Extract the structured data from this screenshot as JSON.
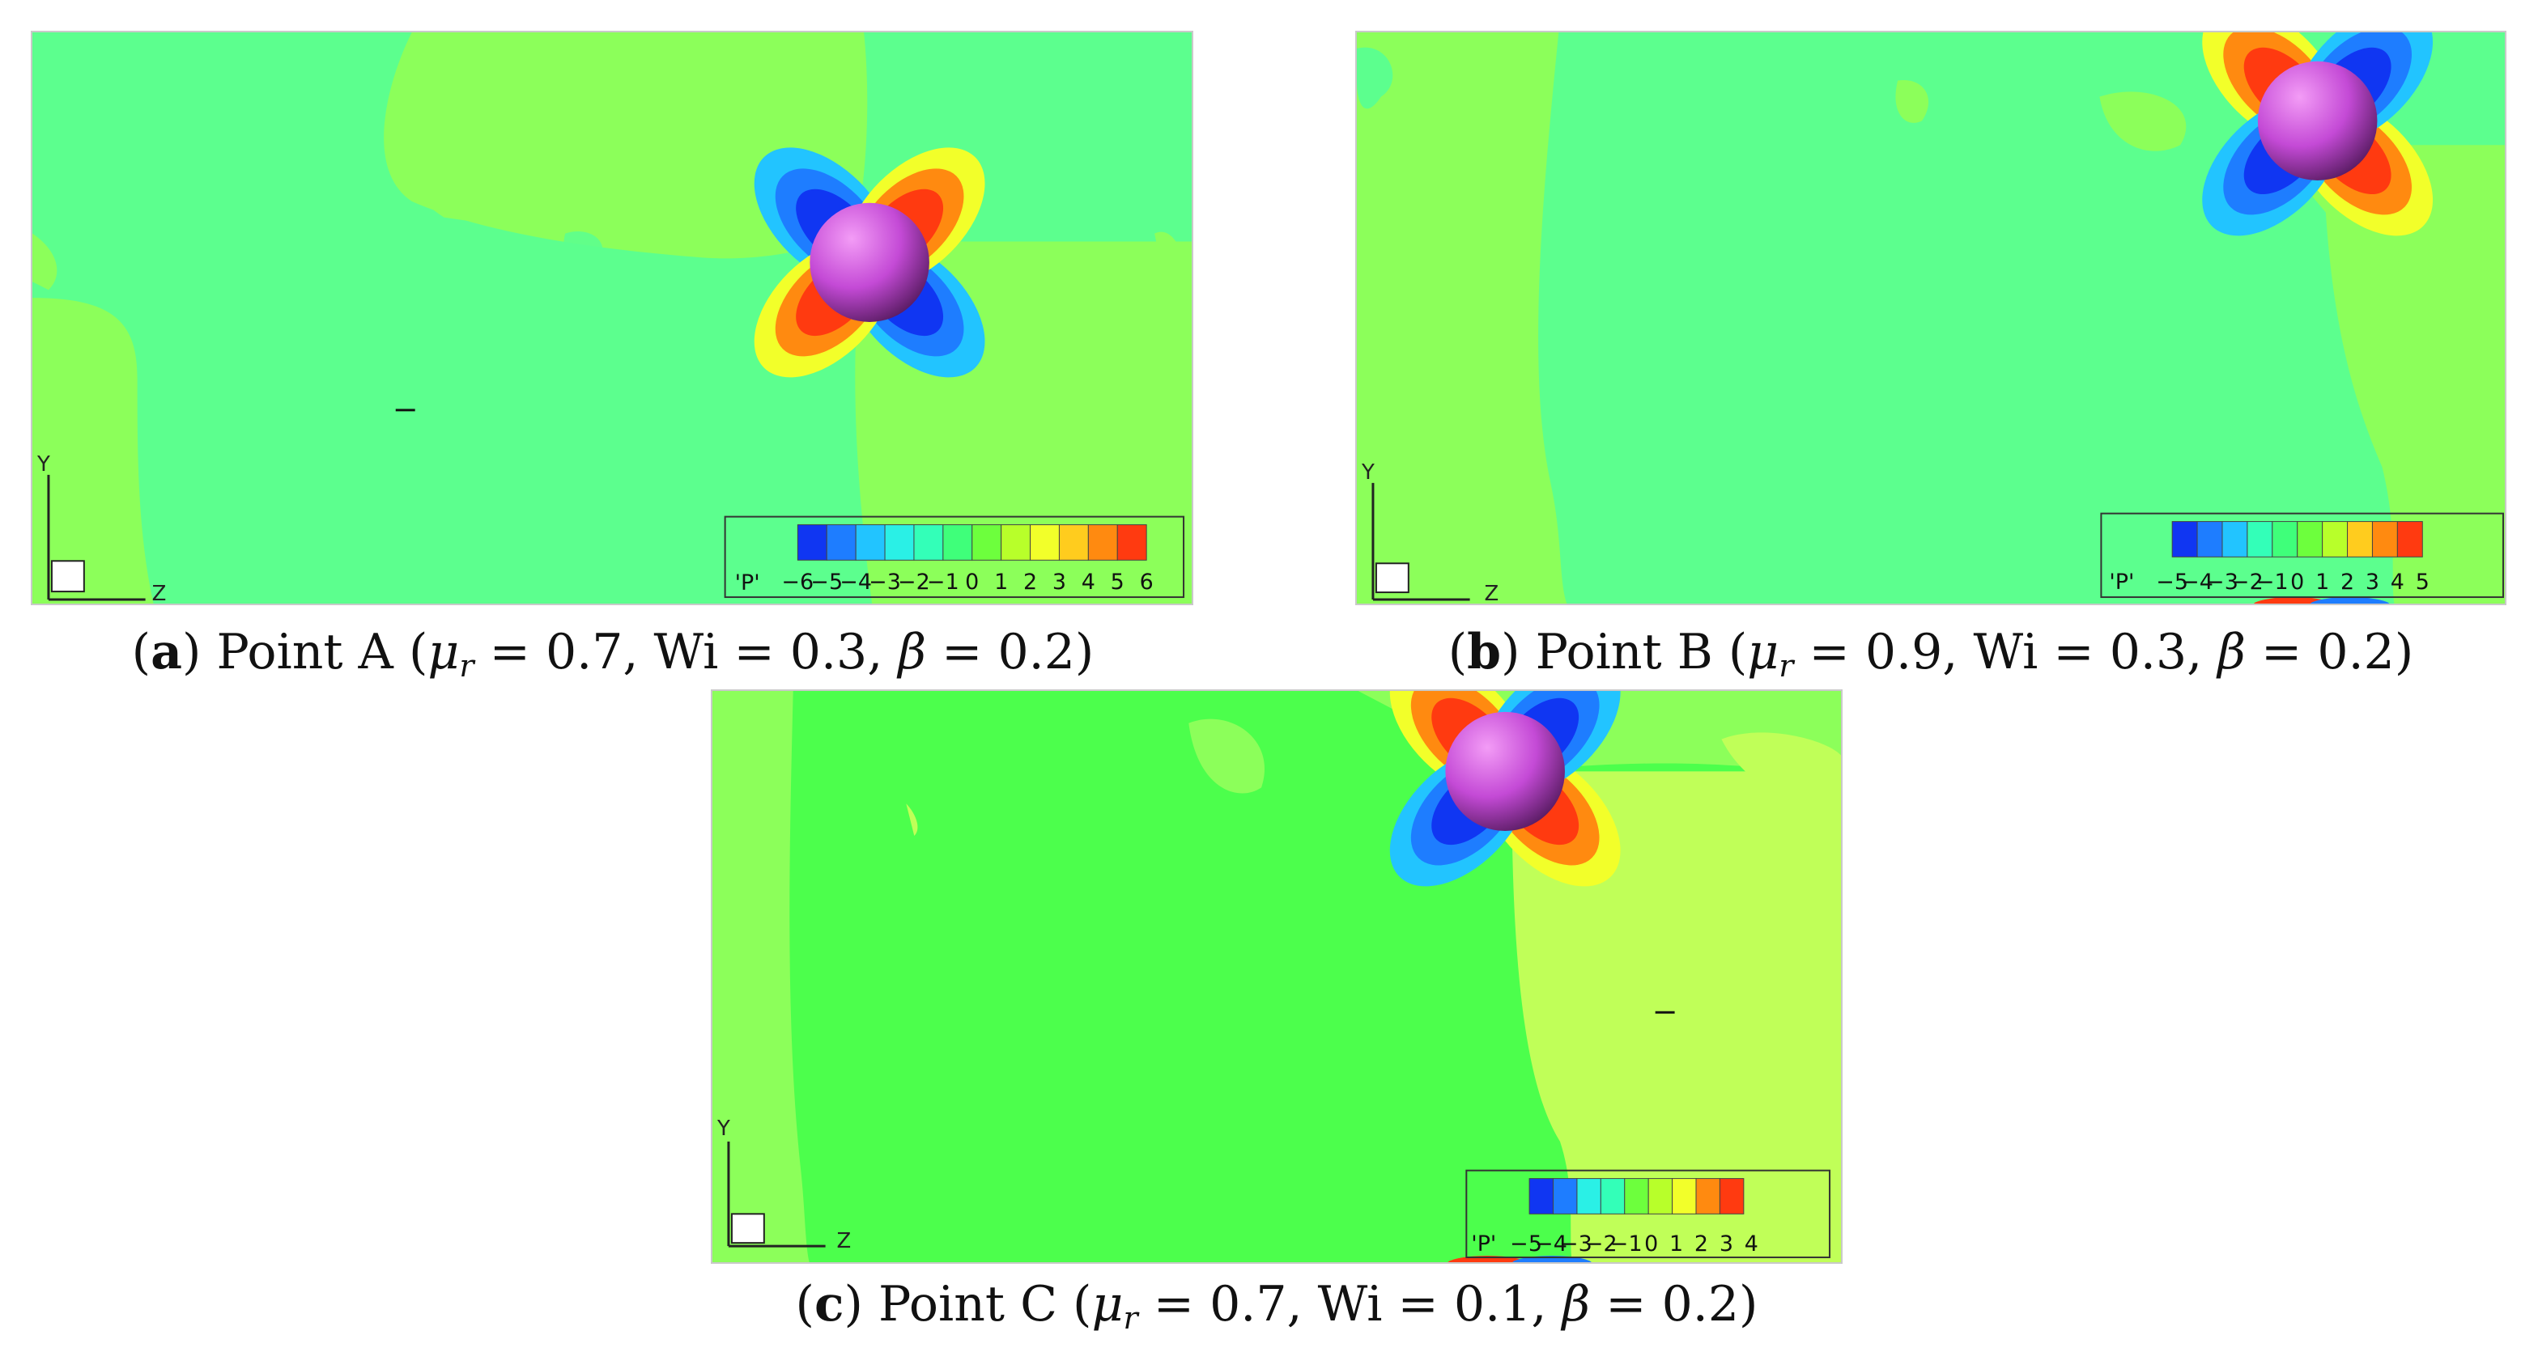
{
  "panels": [
    {
      "id": "a",
      "caption": {
        "letter": "a",
        "point": "Point A",
        "mu": "0.7",
        "wi": "0.3",
        "beta": "0.2"
      },
      "legend": {
        "variable": "'P'",
        "ticks": [
          "−6",
          "−5",
          "−4",
          "−3",
          "−2",
          "−1",
          "0",
          "1",
          "2",
          "3",
          "4",
          "5",
          "6"
        ]
      },
      "axes": {
        "y": "Y",
        "z": "Z"
      }
    },
    {
      "id": "b",
      "caption": {
        "letter": "b",
        "point": "Point B",
        "mu": "0.9",
        "wi": "0.3",
        "beta": "0.2"
      },
      "legend": {
        "variable": "'P'",
        "ticks": [
          "−5",
          "−4",
          "−3",
          "−2",
          "−1",
          "0",
          "1",
          "2",
          "3",
          "4",
          "5"
        ]
      },
      "axes": {
        "y": "Y",
        "z": "Z"
      }
    },
    {
      "id": "c",
      "caption": {
        "letter": "c",
        "point": "Point C",
        "mu": "0.7",
        "wi": "0.1",
        "beta": "0.2"
      },
      "legend": {
        "variable": "'P'",
        "ticks": [
          "−5",
          "−4",
          "−3",
          "−2",
          "−1",
          "0",
          "1",
          "2",
          "3",
          "4"
        ]
      },
      "axes": {
        "y": "Y",
        "z": "Z"
      }
    }
  ],
  "symbols": {
    "mu": "μ",
    "mu_sub": "r",
    "wi": "Wi",
    "beta": "β",
    "eq": "="
  },
  "colors": {
    "field_green": "#5cff8e",
    "field_lime": "#8cff5a",
    "field_yellowgreen": "#c0ff58",
    "sphere": "#c44ad6",
    "contour_scale": [
      "#1036f2",
      "#1e7dff",
      "#22c4ff",
      "#2af0e6",
      "#33ffb8",
      "#3fff7a",
      "#6dff3d",
      "#b8ff2a",
      "#f2ff2a",
      "#ffcc1e",
      "#ff8a10",
      "#ff3a10"
    ]
  }
}
